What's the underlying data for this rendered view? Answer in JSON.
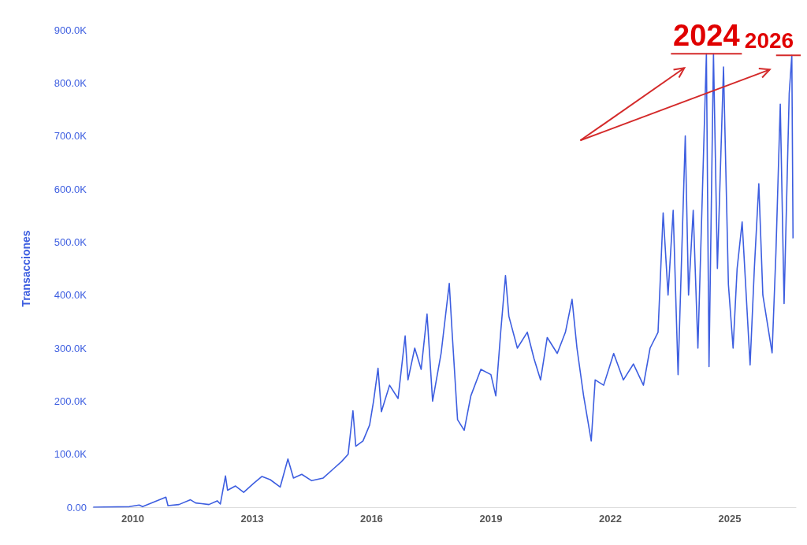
{
  "chart_data": {
    "type": "line",
    "ylabel": "Transacciones",
    "x": [
      "2009-01-03",
      "2009-12-01",
      "2010-03-01",
      "2010-04-01",
      "2010-11-01",
      "2010-11-20",
      "2011-03-01",
      "2011-06-15",
      "2011-08-01",
      "2011-12-01",
      "2012-02-15",
      "2012-03-15",
      "2012-05-01",
      "2012-05-20",
      "2012-08-01",
      "2012-10-15",
      "2013-01-15",
      "2013-04-01",
      "2013-06-15",
      "2013-09-15",
      "2013-11-25",
      "2014-01-15",
      "2014-04-01",
      "2014-07-01",
      "2014-10-15",
      "2015-01-15",
      "2015-04-01",
      "2015-06-01",
      "2015-07-15",
      "2015-08-10",
      "2015-10-15",
      "2015-12-15",
      "2016-01-20",
      "2016-03-01",
      "2016-04-01",
      "2016-06-15",
      "2016-09-01",
      "2016-11-05",
      "2016-12-01",
      "2017-02-01",
      "2017-04-01",
      "2017-05-25",
      "2017-07-15",
      "2017-10-01",
      "2017-12-15",
      "2018-01-10",
      "2018-03-01",
      "2018-05-01",
      "2018-07-01",
      "2018-10-01",
      "2019-01-01",
      "2019-02-15",
      "2019-04-01",
      "2019-05-15",
      "2019-06-15",
      "2019-09-01",
      "2019-12-01",
      "2020-02-01",
      "2020-04-01",
      "2020-06-01",
      "2020-09-01",
      "2020-11-15",
      "2021-01-15",
      "2021-03-01",
      "2021-05-01",
      "2021-07-10",
      "2021-08-15",
      "2021-11-01",
      "2022-02-01",
      "2022-05-01",
      "2022-08-01",
      "2022-11-01",
      "2023-01-01",
      "2023-03-15",
      "2023-05-01",
      "2023-06-15",
      "2023-08-01",
      "2023-09-15",
      "2023-11-20",
      "2023-12-20",
      "2024-02-01",
      "2024-03-15",
      "2024-06-01",
      "2024-06-25",
      "2024-08-05",
      "2024-09-10",
      "2024-11-05",
      "2024-12-20",
      "2025-02-01",
      "2025-03-10",
      "2025-04-25",
      "2025-07-07",
      "2025-08-15",
      "2025-09-25",
      "2025-11-01",
      "2026-01-25",
      "2026-03-01",
      "2026-04-10",
      "2026-05-15",
      "2026-07-01",
      "2026-07-25",
      "2026-08-05"
    ],
    "series": [
      {
        "color": "#3d5ee0",
        "values": [
          0,
          1000,
          4000,
          1000,
          19000,
          3000,
          5000,
          14000,
          8000,
          5000,
          12000,
          6000,
          59000,
          32000,
          40000,
          28000,
          45000,
          58000,
          52000,
          38000,
          91000,
          55000,
          62000,
          50000,
          55000,
          72000,
          86000,
          100000,
          182000,
          115000,
          125000,
          155000,
          200000,
          262000,
          180000,
          230000,
          205000,
          323000,
          240000,
          300000,
          260000,
          364000,
          200000,
          290000,
          422000,
          330000,
          165000,
          145000,
          210000,
          260000,
          250000,
          210000,
          330000,
          437000,
          360000,
          300000,
          330000,
          280000,
          240000,
          320000,
          290000,
          330000,
          392000,
          300000,
          210000,
          125000,
          240000,
          230000,
          290000,
          240000,
          270000,
          230000,
          300000,
          330000,
          555000,
          400000,
          560000,
          250000,
          700000,
          400000,
          560000,
          300000,
          855000,
          265000,
          855000,
          450000,
          830000,
          420000,
          300000,
          450000,
          538000,
          268000,
          450000,
          610000,
          400000,
          291000,
          480000,
          760000,
          384000,
          780000,
          852000,
          507000
        ]
      }
    ],
    "xlim": [
      "2009-01-01",
      "2026-09-01"
    ],
    "xticks": [
      "2010",
      "2013",
      "2016",
      "2019",
      "2022",
      "2025"
    ],
    "ylim": [
      0,
      900000
    ],
    "yticks": [
      {
        "value": 0,
        "label": "0.00"
      },
      {
        "value": 100000,
        "label": "100.0K"
      },
      {
        "value": 200000,
        "label": "200.0K"
      },
      {
        "value": 300000,
        "label": "300.0K"
      },
      {
        "value": 400000,
        "label": "400.0K"
      },
      {
        "value": 500000,
        "label": "500.0K"
      },
      {
        "value": 600000,
        "label": "600.0K"
      },
      {
        "value": 700000,
        "label": "700.0K"
      },
      {
        "value": 800000,
        "label": "800.0K"
      },
      {
        "value": 900000,
        "label": "900.0K"
      }
    ],
    "annotations": [
      {
        "text": "2024",
        "x": "2024-06-01",
        "y": 855000
      },
      {
        "text": "2026",
        "x": "2026-07-25",
        "y": 852000
      }
    ],
    "marker": "none",
    "line_style": "solid",
    "grid": false
  }
}
